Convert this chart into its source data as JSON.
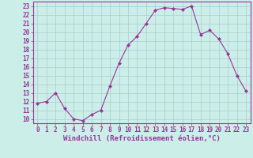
{
  "x": [
    0,
    1,
    2,
    3,
    4,
    5,
    6,
    7,
    8,
    9,
    10,
    11,
    12,
    13,
    14,
    15,
    16,
    17,
    18,
    19,
    20,
    21,
    22,
    23
  ],
  "y": [
    11.8,
    12.0,
    13.0,
    11.2,
    10.0,
    9.8,
    10.5,
    11.0,
    13.8,
    16.4,
    18.5,
    19.5,
    21.0,
    22.5,
    22.8,
    22.7,
    22.6,
    23.0,
    19.7,
    20.2,
    19.2,
    17.5,
    15.0,
    13.2
  ],
  "line_color": "#993399",
  "marker": "D",
  "markersize": 2,
  "linewidth": 0.8,
  "background_color": "#cceee9",
  "grid_color": "#aacccc",
  "xlabel": "Windchill (Refroidissement éolien,°C)",
  "xlim": [
    -0.5,
    23.5
  ],
  "ylim": [
    9.5,
    23.5
  ],
  "yticks": [
    10,
    11,
    12,
    13,
    14,
    15,
    16,
    17,
    18,
    19,
    20,
    21,
    22,
    23
  ],
  "xticks": [
    0,
    1,
    2,
    3,
    4,
    5,
    6,
    7,
    8,
    9,
    10,
    11,
    12,
    13,
    14,
    15,
    16,
    17,
    18,
    19,
    20,
    21,
    22,
    23
  ],
  "tick_fontsize": 5.5,
  "xlabel_fontsize": 6.5,
  "tick_color": "#993399",
  "spine_color": "#993399"
}
